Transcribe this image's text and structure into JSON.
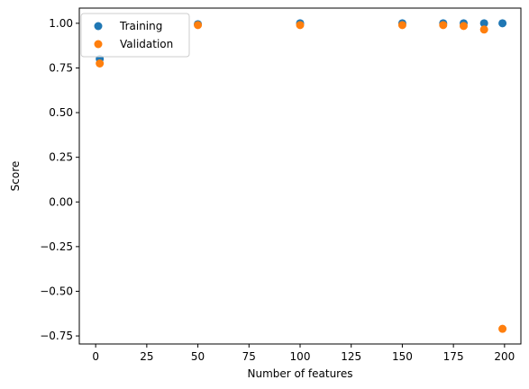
{
  "chart_data": {
    "type": "scatter",
    "xlabel": "Number of features",
    "ylabel": "Score",
    "xlim": [
      -8,
      208
    ],
    "ylim": [
      -0.795,
      1.085
    ],
    "xticks": [
      0,
      25,
      50,
      75,
      100,
      125,
      150,
      175,
      200
    ],
    "yticks": [
      -0.75,
      -0.5,
      -0.25,
      0.0,
      0.25,
      0.5,
      0.75,
      1.0
    ],
    "xtick_labels": [
      "0",
      "25",
      "50",
      "75",
      "100",
      "125",
      "150",
      "175",
      "200"
    ],
    "ytick_labels": [
      "−0.75",
      "−0.50",
      "−0.25",
      "0.00",
      "0.25",
      "0.50",
      "0.75",
      "1.00"
    ],
    "grid": false,
    "legend_position": "top-left",
    "series": [
      {
        "name": "Training",
        "color": "#1f77b4",
        "x": [
          2,
          50,
          100,
          150,
          170,
          180,
          190,
          199
        ],
        "y": [
          0.8,
          0.995,
          1.0,
          1.0,
          1.0,
          1.0,
          1.0,
          1.0
        ]
      },
      {
        "name": "Validation",
        "color": "#ff7f0e",
        "x": [
          2,
          50,
          100,
          150,
          170,
          180,
          190,
          199
        ],
        "y": [
          0.775,
          0.99,
          0.99,
          0.99,
          0.99,
          0.985,
          0.965,
          -0.71
        ]
      }
    ]
  }
}
